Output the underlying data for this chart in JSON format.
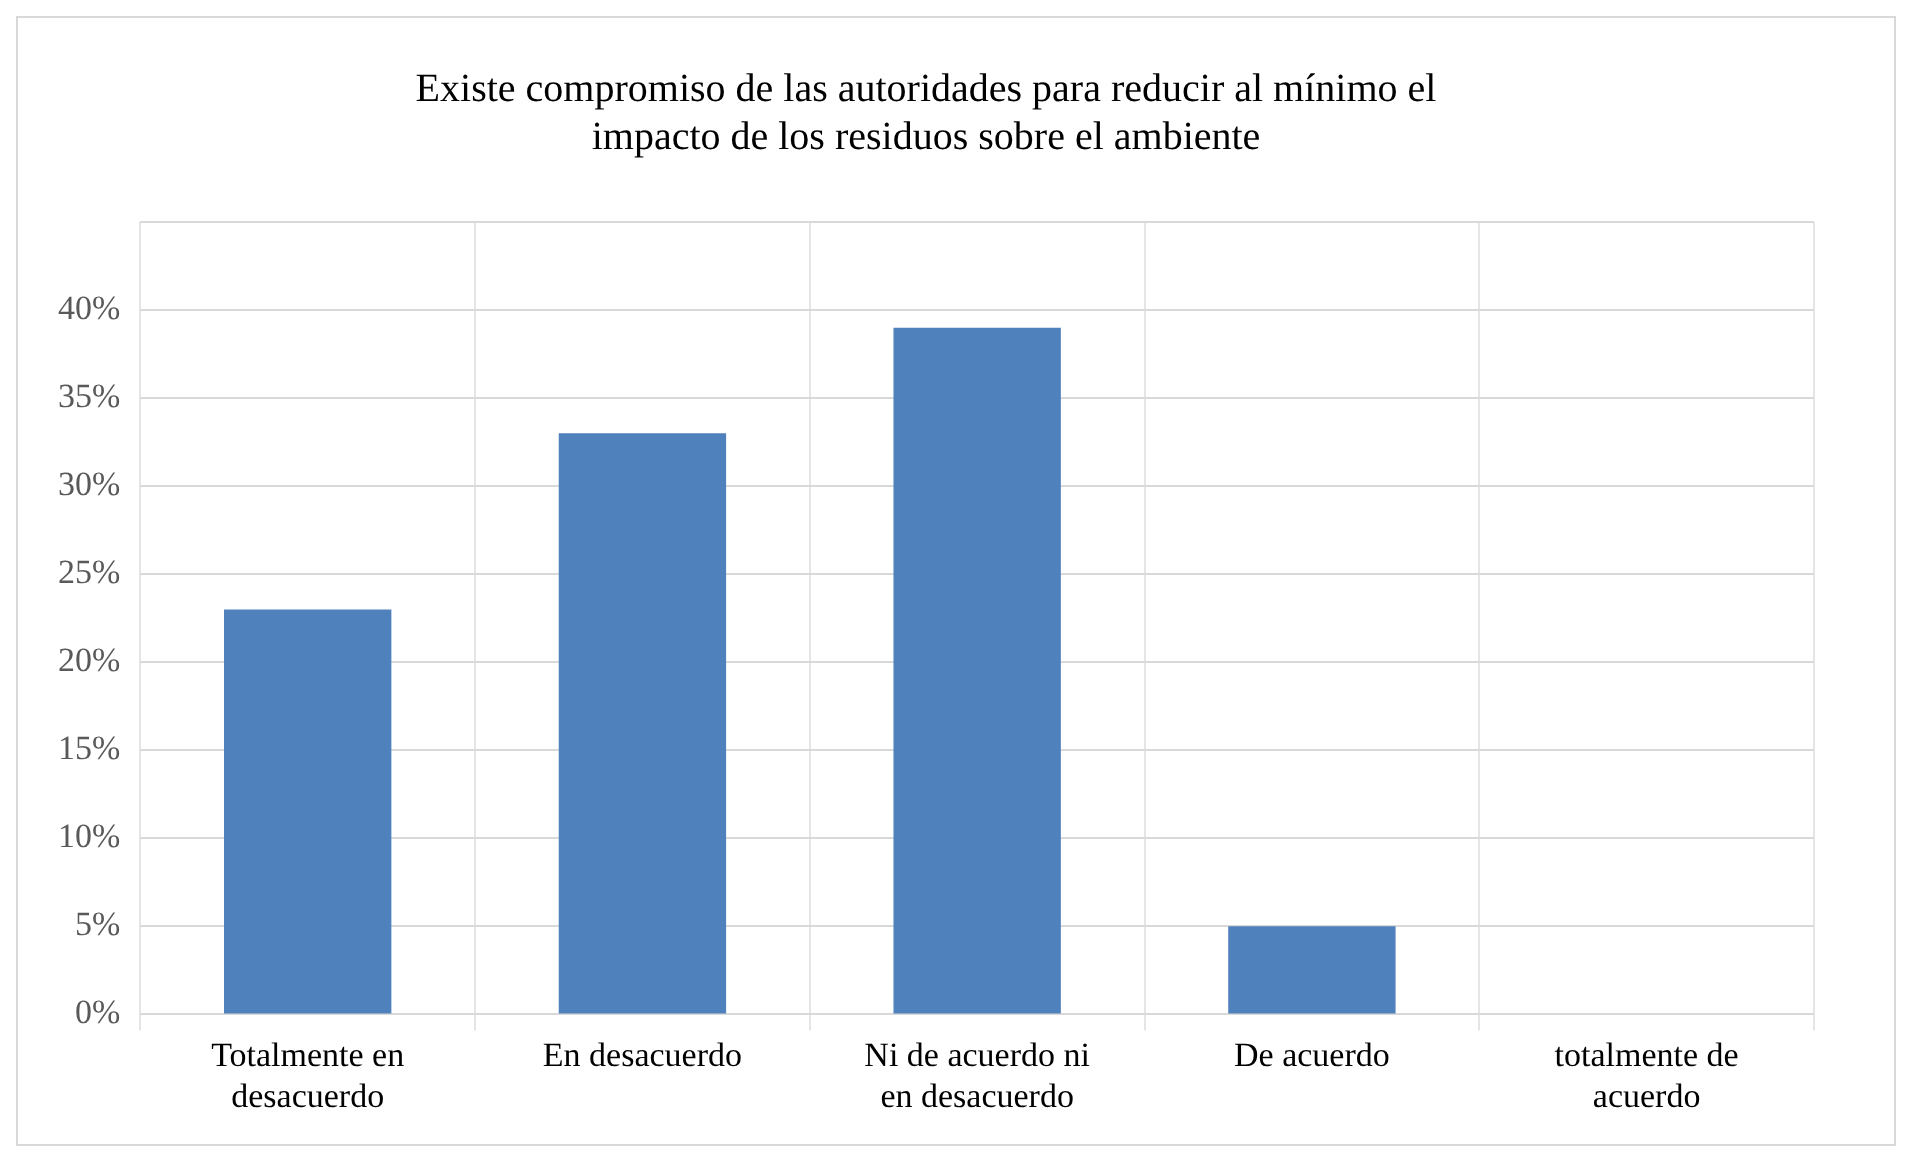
{
  "chart_data": {
    "type": "bar",
    "title": "Existe compromiso de las autoridades para reducir al mínimo el impacto de los residuos sobre el ambiente",
    "categories": [
      "Totalmente en desacuerdo",
      "En desacuerdo",
      "Ni de acuerdo ni en desacuerdo",
      "De acuerdo",
      "totalmente de acuerdo"
    ],
    "values": [
      23,
      33,
      39,
      5,
      0
    ],
    "color": "#4f81bd",
    "ylim": [
      0,
      45
    ],
    "yticks": [
      {
        "value": 0,
        "label": "0%"
      },
      {
        "value": 5,
        "label": "5%"
      },
      {
        "value": 10,
        "label": "10%"
      },
      {
        "value": 15,
        "label": "15%"
      },
      {
        "value": 20,
        "label": "20%"
      },
      {
        "value": 25,
        "label": "25%"
      },
      {
        "value": 30,
        "label": "30%"
      },
      {
        "value": 35,
        "label": "35%"
      },
      {
        "value": 40,
        "label": "40%"
      },
      {
        "value": 45,
        "label": null
      }
    ],
    "grid": true
  }
}
